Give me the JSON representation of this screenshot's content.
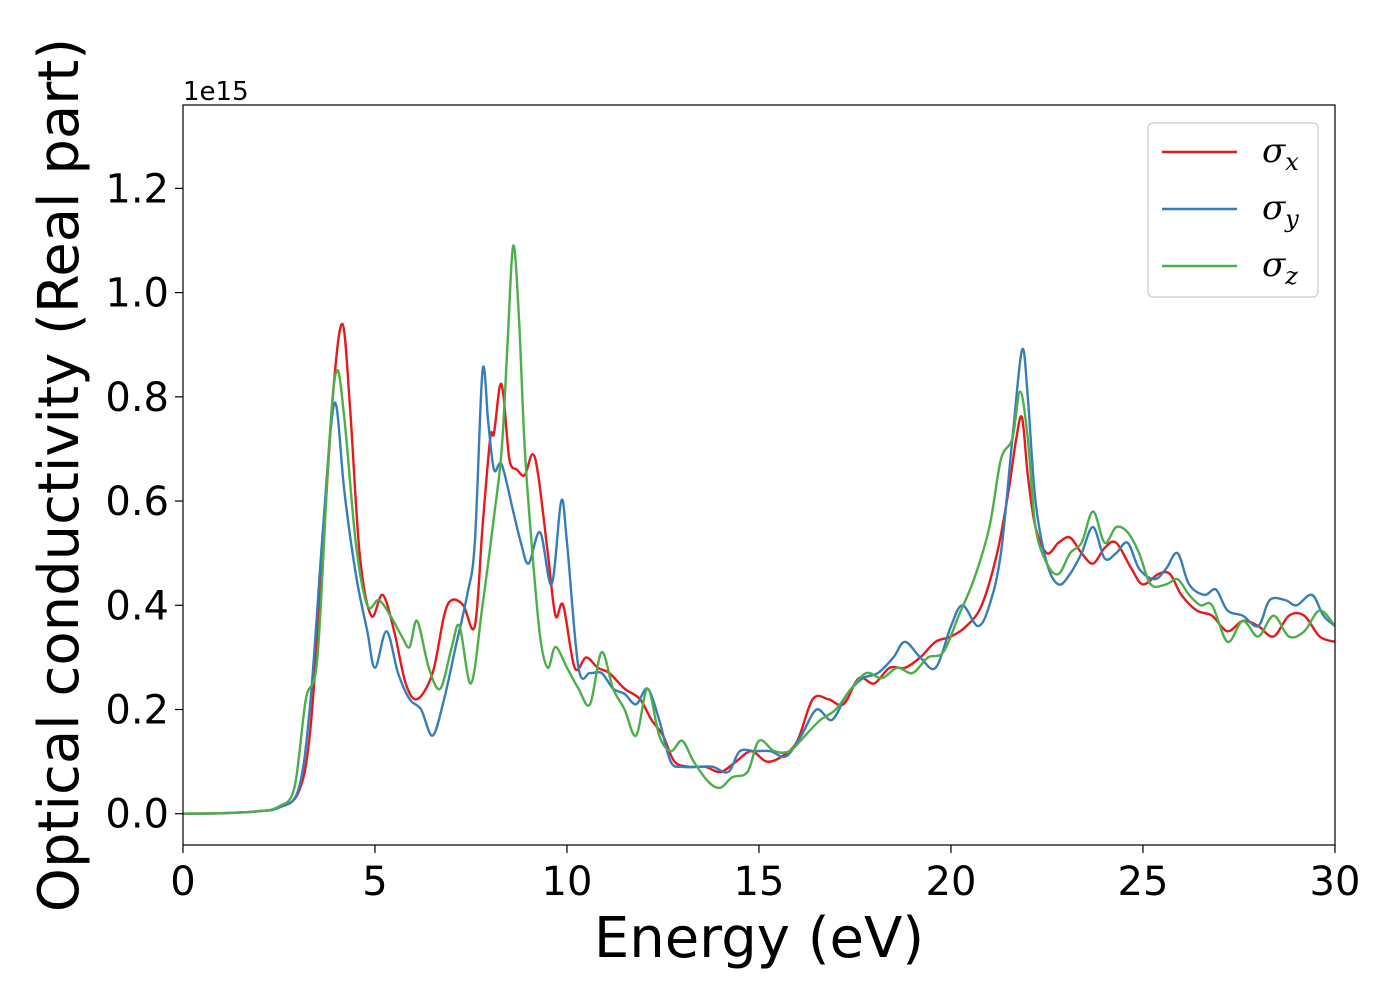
{
  "chart_data": {
    "type": "line",
    "title": "",
    "xlabel": "Energy (eV)",
    "ylabel": "Optical conductivity (Real part)",
    "y_offset_label": "1e15",
    "xlim": [
      0,
      30
    ],
    "ylim": [
      -0.06,
      1.36
    ],
    "x_ticks": [
      0,
      5,
      10,
      15,
      20,
      25,
      30
    ],
    "x_tick_labels": [
      "0",
      "5",
      "10",
      "15",
      "20",
      "25",
      "30"
    ],
    "y_ticks": [
      0.0,
      0.2,
      0.4,
      0.6,
      0.8,
      1.0,
      1.2
    ],
    "y_tick_labels": [
      "0.0",
      "0.2",
      "0.4",
      "0.6",
      "0.8",
      "1.0",
      "1.2"
    ],
    "grid": false,
    "legend_position": "top-right",
    "series": [
      {
        "name": "σ",
        "subscript": "x",
        "color": "#e41a1c",
        "points": [
          [
            0,
            0
          ],
          [
            1,
            0.001
          ],
          [
            2,
            0.005
          ],
          [
            2.5,
            0.012
          ],
          [
            3,
            0.04
          ],
          [
            3.3,
            0.15
          ],
          [
            3.6,
            0.45
          ],
          [
            3.9,
            0.8
          ],
          [
            4.15,
            0.94
          ],
          [
            4.35,
            0.78
          ],
          [
            4.6,
            0.5
          ],
          [
            4.9,
            0.38
          ],
          [
            5.2,
            0.42
          ],
          [
            5.5,
            0.35
          ],
          [
            5.8,
            0.25
          ],
          [
            6.1,
            0.22
          ],
          [
            6.5,
            0.27
          ],
          [
            6.8,
            0.38
          ],
          [
            7.0,
            0.41
          ],
          [
            7.3,
            0.4
          ],
          [
            7.6,
            0.36
          ],
          [
            7.8,
            0.55
          ],
          [
            8.0,
            0.72
          ],
          [
            8.1,
            0.73
          ],
          [
            8.25,
            0.82
          ],
          [
            8.35,
            0.8
          ],
          [
            8.5,
            0.68
          ],
          [
            8.7,
            0.66
          ],
          [
            8.9,
            0.65
          ],
          [
            9.1,
            0.69
          ],
          [
            9.25,
            0.65
          ],
          [
            9.5,
            0.5
          ],
          [
            9.7,
            0.38
          ],
          [
            9.9,
            0.4
          ],
          [
            10.2,
            0.28
          ],
          [
            10.5,
            0.3
          ],
          [
            10.8,
            0.28
          ],
          [
            11.1,
            0.27
          ],
          [
            11.5,
            0.24
          ],
          [
            11.9,
            0.22
          ],
          [
            12.2,
            0.18
          ],
          [
            12.5,
            0.15
          ],
          [
            12.8,
            0.1
          ],
          [
            13.2,
            0.09
          ],
          [
            13.6,
            0.09
          ],
          [
            14.0,
            0.08
          ],
          [
            14.4,
            0.1
          ],
          [
            14.8,
            0.12
          ],
          [
            15.2,
            0.1
          ],
          [
            15.6,
            0.11
          ],
          [
            16.0,
            0.14
          ],
          [
            16.4,
            0.22
          ],
          [
            16.8,
            0.22
          ],
          [
            17.2,
            0.21
          ],
          [
            17.6,
            0.26
          ],
          [
            18.0,
            0.25
          ],
          [
            18.4,
            0.28
          ],
          [
            18.8,
            0.28
          ],
          [
            19.2,
            0.3
          ],
          [
            19.6,
            0.33
          ],
          [
            20.0,
            0.34
          ],
          [
            20.4,
            0.36
          ],
          [
            20.8,
            0.4
          ],
          [
            21.2,
            0.5
          ],
          [
            21.5,
            0.62
          ],
          [
            21.7,
            0.72
          ],
          [
            21.85,
            0.76
          ],
          [
            22.0,
            0.65
          ],
          [
            22.2,
            0.55
          ],
          [
            22.5,
            0.5
          ],
          [
            22.8,
            0.52
          ],
          [
            23.1,
            0.53
          ],
          [
            23.4,
            0.5
          ],
          [
            23.7,
            0.48
          ],
          [
            24.0,
            0.51
          ],
          [
            24.3,
            0.52
          ],
          [
            24.7,
            0.47
          ],
          [
            25.0,
            0.44
          ],
          [
            25.4,
            0.46
          ],
          [
            25.7,
            0.46
          ],
          [
            26.0,
            0.42
          ],
          [
            26.4,
            0.39
          ],
          [
            26.8,
            0.38
          ],
          [
            27.2,
            0.35
          ],
          [
            27.6,
            0.37
          ],
          [
            28.0,
            0.36
          ],
          [
            28.4,
            0.34
          ],
          [
            28.8,
            0.38
          ],
          [
            29.2,
            0.38
          ],
          [
            29.6,
            0.34
          ],
          [
            30,
            0.33
          ]
        ]
      },
      {
        "name": "σ",
        "subscript": "y",
        "color": "#377eb8",
        "points": [
          [
            0,
            0
          ],
          [
            1,
            0.001
          ],
          [
            2,
            0.005
          ],
          [
            2.5,
            0.012
          ],
          [
            3,
            0.045
          ],
          [
            3.3,
            0.2
          ],
          [
            3.6,
            0.5
          ],
          [
            3.85,
            0.74
          ],
          [
            4.0,
            0.78
          ],
          [
            4.2,
            0.62
          ],
          [
            4.5,
            0.46
          ],
          [
            4.8,
            0.35
          ],
          [
            5.0,
            0.28
          ],
          [
            5.3,
            0.35
          ],
          [
            5.6,
            0.27
          ],
          [
            5.9,
            0.22
          ],
          [
            6.2,
            0.2
          ],
          [
            6.5,
            0.15
          ],
          [
            6.8,
            0.22
          ],
          [
            7.1,
            0.32
          ],
          [
            7.4,
            0.42
          ],
          [
            7.6,
            0.52
          ],
          [
            7.8,
            0.85
          ],
          [
            7.95,
            0.75
          ],
          [
            8.1,
            0.66
          ],
          [
            8.3,
            0.67
          ],
          [
            8.6,
            0.58
          ],
          [
            8.8,
            0.52
          ],
          [
            9.0,
            0.48
          ],
          [
            9.3,
            0.54
          ],
          [
            9.6,
            0.44
          ],
          [
            9.85,
            0.6
          ],
          [
            10.0,
            0.52
          ],
          [
            10.3,
            0.28
          ],
          [
            10.6,
            0.27
          ],
          [
            10.9,
            0.27
          ],
          [
            11.2,
            0.24
          ],
          [
            11.5,
            0.23
          ],
          [
            11.8,
            0.21
          ],
          [
            12.1,
            0.24
          ],
          [
            12.4,
            0.18
          ],
          [
            12.7,
            0.1
          ],
          [
            13.0,
            0.09
          ],
          [
            13.4,
            0.09
          ],
          [
            13.8,
            0.09
          ],
          [
            14.2,
            0.08
          ],
          [
            14.5,
            0.12
          ],
          [
            14.9,
            0.12
          ],
          [
            15.3,
            0.12
          ],
          [
            15.7,
            0.11
          ],
          [
            16.1,
            0.15
          ],
          [
            16.5,
            0.2
          ],
          [
            16.9,
            0.18
          ],
          [
            17.3,
            0.23
          ],
          [
            17.7,
            0.26
          ],
          [
            18.1,
            0.27
          ],
          [
            18.5,
            0.3
          ],
          [
            18.8,
            0.33
          ],
          [
            19.2,
            0.3
          ],
          [
            19.6,
            0.28
          ],
          [
            20.0,
            0.36
          ],
          [
            20.3,
            0.4
          ],
          [
            20.7,
            0.36
          ],
          [
            21.0,
            0.4
          ],
          [
            21.3,
            0.5
          ],
          [
            21.6,
            0.72
          ],
          [
            21.85,
            0.89
          ],
          [
            22.0,
            0.8
          ],
          [
            22.2,
            0.6
          ],
          [
            22.5,
            0.48
          ],
          [
            22.8,
            0.44
          ],
          [
            23.1,
            0.46
          ],
          [
            23.4,
            0.5
          ],
          [
            23.7,
            0.55
          ],
          [
            24.0,
            0.49
          ],
          [
            24.3,
            0.5
          ],
          [
            24.6,
            0.52
          ],
          [
            24.9,
            0.47
          ],
          [
            25.3,
            0.45
          ],
          [
            25.6,
            0.47
          ],
          [
            25.9,
            0.5
          ],
          [
            26.2,
            0.44
          ],
          [
            26.6,
            0.42
          ],
          [
            26.9,
            0.43
          ],
          [
            27.2,
            0.39
          ],
          [
            27.6,
            0.38
          ],
          [
            28.0,
            0.36
          ],
          [
            28.3,
            0.41
          ],
          [
            28.7,
            0.41
          ],
          [
            29.0,
            0.4
          ],
          [
            29.4,
            0.42
          ],
          [
            29.7,
            0.38
          ],
          [
            30,
            0.36
          ]
        ]
      },
      {
        "name": "σ",
        "subscript": "z",
        "color": "#4daf4a",
        "points": [
          [
            0,
            0
          ],
          [
            1,
            0.001
          ],
          [
            2,
            0.005
          ],
          [
            2.5,
            0.014
          ],
          [
            2.9,
            0.05
          ],
          [
            3.2,
            0.22
          ],
          [
            3.5,
            0.3
          ],
          [
            3.8,
            0.7
          ],
          [
            4.0,
            0.85
          ],
          [
            4.2,
            0.76
          ],
          [
            4.5,
            0.52
          ],
          [
            4.8,
            0.4
          ],
          [
            5.1,
            0.41
          ],
          [
            5.4,
            0.38
          ],
          [
            5.7,
            0.34
          ],
          [
            5.9,
            0.32
          ],
          [
            6.1,
            0.37
          ],
          [
            6.4,
            0.28
          ],
          [
            6.7,
            0.24
          ],
          [
            7.0,
            0.32
          ],
          [
            7.2,
            0.36
          ],
          [
            7.5,
            0.25
          ],
          [
            7.8,
            0.4
          ],
          [
            8.1,
            0.57
          ],
          [
            8.3,
            0.7
          ],
          [
            8.45,
            0.9
          ],
          [
            8.6,
            1.09
          ],
          [
            8.75,
            0.95
          ],
          [
            8.9,
            0.7
          ],
          [
            9.1,
            0.5
          ],
          [
            9.3,
            0.34
          ],
          [
            9.5,
            0.28
          ],
          [
            9.7,
            0.32
          ],
          [
            10.0,
            0.28
          ],
          [
            10.3,
            0.24
          ],
          [
            10.6,
            0.21
          ],
          [
            10.9,
            0.31
          ],
          [
            11.2,
            0.24
          ],
          [
            11.5,
            0.2
          ],
          [
            11.8,
            0.15
          ],
          [
            12.1,
            0.24
          ],
          [
            12.4,
            0.15
          ],
          [
            12.7,
            0.12
          ],
          [
            13.0,
            0.14
          ],
          [
            13.3,
            0.1
          ],
          [
            13.7,
            0.06
          ],
          [
            14.0,
            0.05
          ],
          [
            14.3,
            0.07
          ],
          [
            14.7,
            0.08
          ],
          [
            15.0,
            0.14
          ],
          [
            15.4,
            0.12
          ],
          [
            15.8,
            0.12
          ],
          [
            16.2,
            0.15
          ],
          [
            16.6,
            0.18
          ],
          [
            17.0,
            0.2
          ],
          [
            17.4,
            0.24
          ],
          [
            17.8,
            0.27
          ],
          [
            18.2,
            0.26
          ],
          [
            18.6,
            0.28
          ],
          [
            19.0,
            0.27
          ],
          [
            19.4,
            0.3
          ],
          [
            19.8,
            0.31
          ],
          [
            20.2,
            0.38
          ],
          [
            20.6,
            0.45
          ],
          [
            21.0,
            0.55
          ],
          [
            21.3,
            0.68
          ],
          [
            21.6,
            0.72
          ],
          [
            21.8,
            0.81
          ],
          [
            22.0,
            0.72
          ],
          [
            22.2,
            0.55
          ],
          [
            22.5,
            0.48
          ],
          [
            22.8,
            0.46
          ],
          [
            23.1,
            0.5
          ],
          [
            23.4,
            0.52
          ],
          [
            23.7,
            0.58
          ],
          [
            24.0,
            0.52
          ],
          [
            24.3,
            0.55
          ],
          [
            24.6,
            0.54
          ],
          [
            24.9,
            0.5
          ],
          [
            25.2,
            0.44
          ],
          [
            25.6,
            0.44
          ],
          [
            25.9,
            0.45
          ],
          [
            26.2,
            0.42
          ],
          [
            26.5,
            0.4
          ],
          [
            26.8,
            0.4
          ],
          [
            27.2,
            0.33
          ],
          [
            27.6,
            0.37
          ],
          [
            28.0,
            0.34
          ],
          [
            28.4,
            0.38
          ],
          [
            28.8,
            0.34
          ],
          [
            29.2,
            0.35
          ],
          [
            29.6,
            0.39
          ],
          [
            30,
            0.36
          ]
        ]
      }
    ]
  }
}
